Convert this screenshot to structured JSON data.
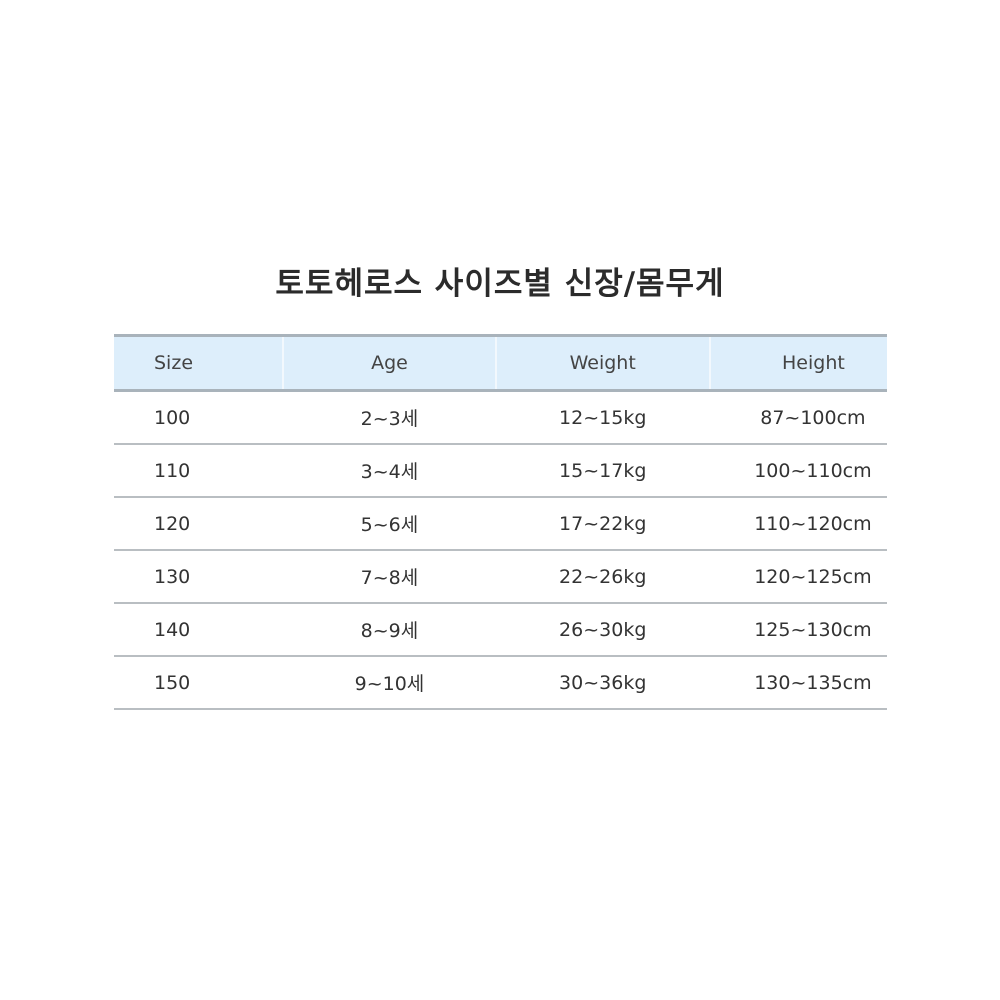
{
  "title": "토토헤로스 사이즈별 신장/몸무게",
  "table": {
    "headers": [
      "Size",
      "Age",
      "Weight",
      "Height"
    ],
    "rows": [
      [
        "100",
        "2~3세",
        "12~15kg",
        "87~100cm"
      ],
      [
        "110",
        "3~4세",
        "15~17kg",
        "100~110cm"
      ],
      [
        "120",
        "5~6세",
        "17~22kg",
        "110~120cm"
      ],
      [
        "130",
        "7~8세",
        "22~26kg",
        "120~125cm"
      ],
      [
        "140",
        "8~9세",
        "26~30kg",
        "125~130cm"
      ],
      [
        "150",
        "9~10세",
        "30~36kg",
        "130~135cm"
      ]
    ]
  },
  "colors": {
    "header_bg": "#ddeefb",
    "rule": "#a9b3bb"
  }
}
